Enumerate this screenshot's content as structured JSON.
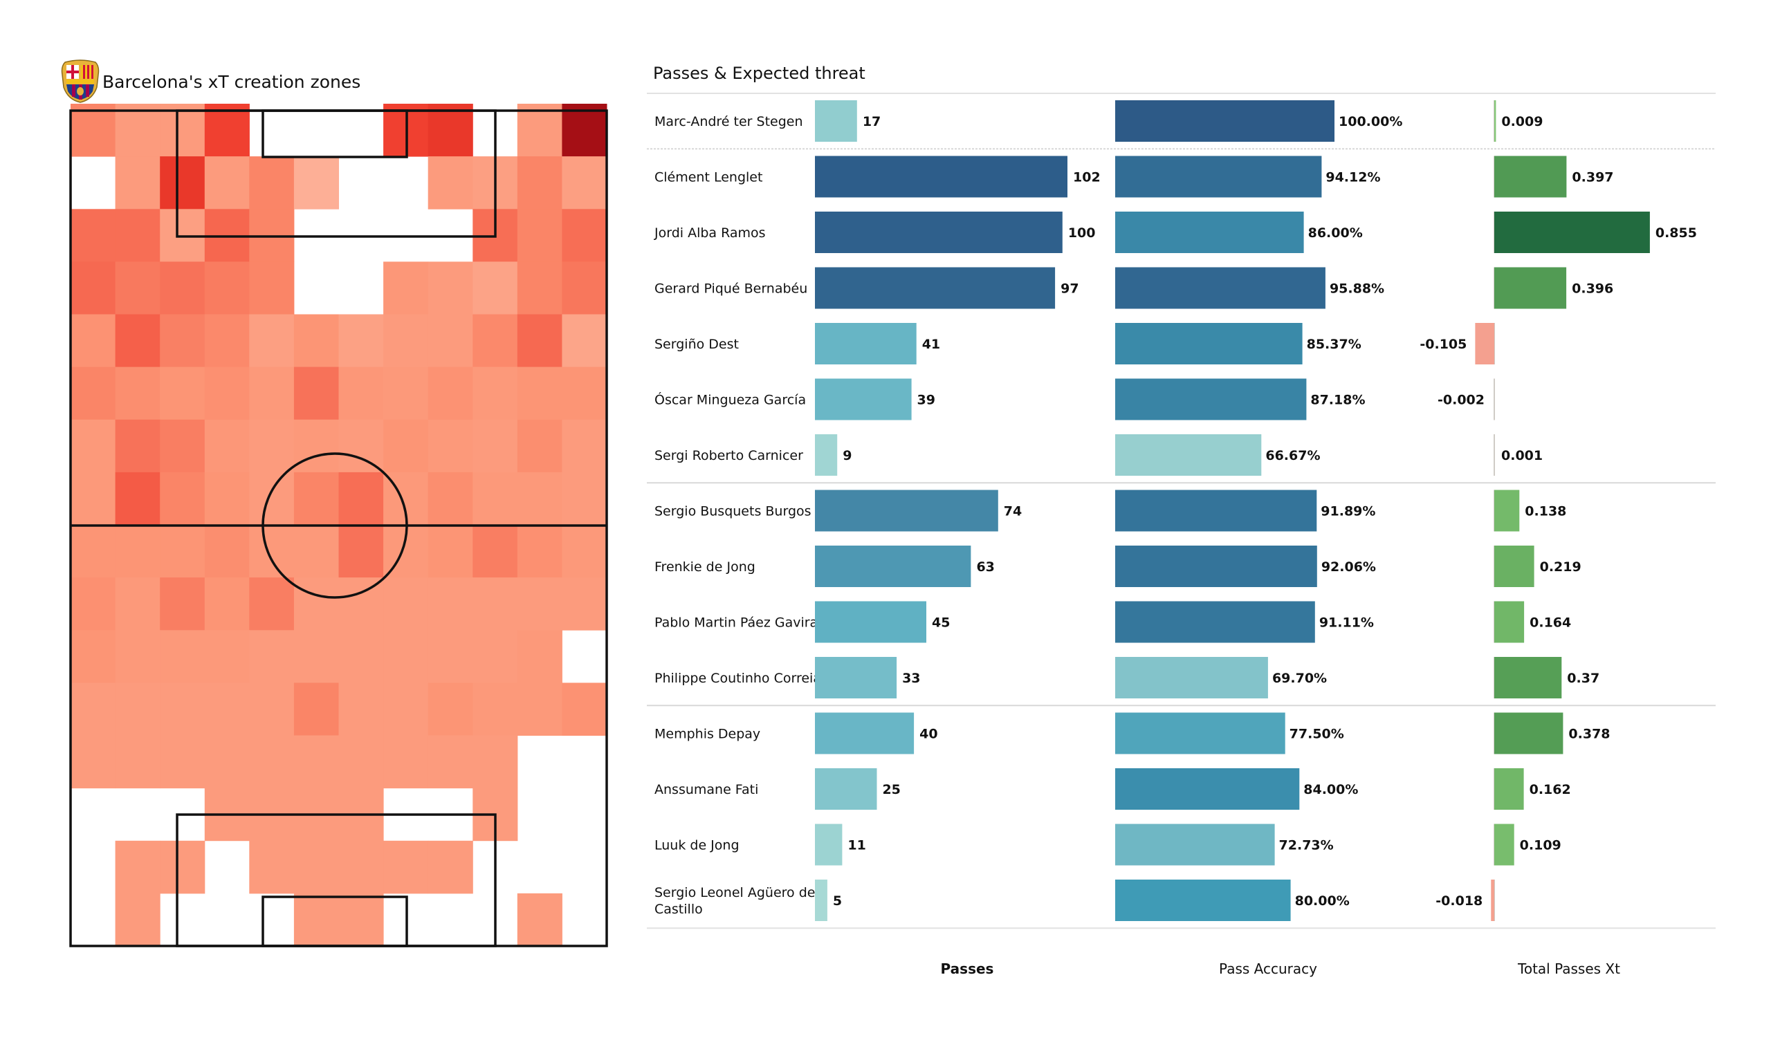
{
  "left_panel": {
    "title": "Barcelona's xT creation zones",
    "crest_icon": "fc-barcelona-crest-icon"
  },
  "right_panel": {
    "title": "Passes & Expected threat",
    "column_headers": [
      "Passes",
      "Pass Accuracy",
      "Total Passes Xt"
    ]
  },
  "chart_data": [
    {
      "type": "heatmap",
      "title": "Barcelona's xT creation zones",
      "description": "12 x 16 grid on a vertical pitch (attacking towards top). Intensity 0 = no data (white), higher = more xT created.",
      "columns": 12,
      "rows": 16,
      "color_scale": [
        "#fee0d2",
        "#fc9272",
        "#ef3b2c",
        "#a50f15"
      ],
      "max_value": 10,
      "values": [
        [
          3,
          2,
          2,
          6,
          0,
          0,
          0,
          6,
          6.5,
          0,
          2,
          10
        ],
        [
          0,
          2,
          6.5,
          2,
          3,
          1,
          0,
          0,
          2,
          1.8,
          3,
          1.8
        ],
        [
          4,
          4,
          1.8,
          4.3,
          3,
          0,
          0,
          0,
          0,
          4,
          3,
          4
        ],
        [
          4.2,
          3.5,
          3.8,
          3.4,
          3,
          0,
          0,
          2.2,
          2,
          1.6,
          3,
          3.6
        ],
        [
          2.4,
          4.6,
          3.2,
          2.8,
          1.8,
          2.3,
          1.7,
          2,
          2,
          2.8,
          4.2,
          1.5
        ],
        [
          3,
          2.6,
          2.3,
          2.5,
          2.1,
          3.8,
          2.2,
          2.1,
          2.4,
          2.1,
          2.3,
          2.3
        ],
        [
          2.1,
          3.8,
          3.3,
          2.2,
          2,
          2.1,
          2,
          2.3,
          2.1,
          2,
          2.6,
          2
        ],
        [
          2.1,
          4.8,
          3,
          2.3,
          2,
          3,
          4,
          2.1,
          2.6,
          2.1,
          2.1,
          2
        ],
        [
          2.3,
          2.3,
          2.3,
          2.6,
          2.1,
          2.1,
          3.8,
          2.1,
          2.3,
          3.3,
          2.5,
          2.1
        ],
        [
          2.5,
          2.1,
          3.3,
          2.3,
          3.3,
          2,
          2,
          2,
          2,
          2,
          2,
          2
        ],
        [
          2.3,
          2.1,
          2.1,
          2.1,
          2,
          2,
          2,
          2,
          2,
          2,
          2.1,
          0
        ],
        [
          2,
          2,
          2,
          2,
          2,
          3,
          2,
          2,
          2.3,
          2.1,
          2.1,
          2.4
        ],
        [
          2,
          2,
          2,
          2,
          2,
          2,
          2,
          2,
          2,
          2,
          0,
          0
        ],
        [
          0,
          0,
          0,
          2,
          2,
          2,
          2,
          0,
          0,
          2,
          0,
          0
        ],
        [
          0,
          2,
          2,
          0,
          2,
          2,
          2,
          2,
          2,
          0,
          0,
          0
        ],
        [
          0,
          2,
          0,
          0,
          0,
          2,
          2,
          0,
          0,
          0,
          2,
          0
        ]
      ]
    },
    {
      "type": "bar",
      "title": "Passes & Expected threat",
      "orientation": "horizontal",
      "groups": [
        {
          "players": [
            0
          ]
        },
        {
          "players": [
            1,
            2,
            3,
            4,
            5,
            6
          ]
        },
        {
          "players": [
            7,
            8,
            9,
            10
          ]
        },
        {
          "players": [
            11,
            12,
            13,
            14
          ]
        }
      ],
      "players": [
        {
          "name": "Marc-André ter Stegen",
          "passes": 17,
          "accuracy": 100.0,
          "accuracy_label": "100.00%",
          "xt": 0.009,
          "xt_label": "0.009"
        },
        {
          "name": "Clément Lenglet",
          "passes": 102,
          "accuracy": 94.12,
          "accuracy_label": "94.12%",
          "xt": 0.397,
          "xt_label": "0.397"
        },
        {
          "name": "Jordi Alba Ramos",
          "passes": 100,
          "accuracy": 86.0,
          "accuracy_label": "86.00%",
          "xt": 0.855,
          "xt_label": "0.855"
        },
        {
          "name": "Gerard Piqué Bernabéu",
          "passes": 97,
          "accuracy": 95.88,
          "accuracy_label": "95.88%",
          "xt": 0.396,
          "xt_label": "0.396"
        },
        {
          "name": "Sergiño Dest",
          "passes": 41,
          "accuracy": 85.37,
          "accuracy_label": "85.37%",
          "xt": -0.105,
          "xt_label": "-0.105"
        },
        {
          "name": "Óscar Mingueza García",
          "passes": 39,
          "accuracy": 87.18,
          "accuracy_label": "87.18%",
          "xt": -0.002,
          "xt_label": "-0.002"
        },
        {
          "name": "Sergi Roberto Carnicer",
          "passes": 9,
          "accuracy": 66.67,
          "accuracy_label": "66.67%",
          "xt": 0.001,
          "xt_label": "0.001"
        },
        {
          "name": "Sergio Busquets Burgos",
          "passes": 74,
          "accuracy": 91.89,
          "accuracy_label": "91.89%",
          "xt": 0.138,
          "xt_label": "0.138"
        },
        {
          "name": "Frenkie de Jong",
          "passes": 63,
          "accuracy": 92.06,
          "accuracy_label": "92.06%",
          "xt": 0.219,
          "xt_label": "0.219"
        },
        {
          "name": "Pablo Martin Páez Gavira",
          "passes": 45,
          "accuracy": 91.11,
          "accuracy_label": "91.11%",
          "xt": 0.164,
          "xt_label": "0.164"
        },
        {
          "name": "Philippe Coutinho Correia",
          "passes": 33,
          "accuracy": 69.7,
          "accuracy_label": "69.70%",
          "xt": 0.37,
          "xt_label": "0.37"
        },
        {
          "name": "Memphis Depay",
          "passes": 40,
          "accuracy": 77.5,
          "accuracy_label": "77.50%",
          "xt": 0.378,
          "xt_label": "0.378"
        },
        {
          "name": "Anssumane Fati",
          "passes": 25,
          "accuracy": 84.0,
          "accuracy_label": "84.00%",
          "xt": 0.162,
          "xt_label": "0.162"
        },
        {
          "name": "Luuk de Jong",
          "passes": 11,
          "accuracy": 72.73,
          "accuracy_label": "72.73%",
          "xt": 0.109,
          "xt_label": "0.109"
        },
        {
          "name": "Sergio Leonel Agüero del Castillo",
          "passes": 5,
          "accuracy": 80.0,
          "accuracy_label": "80.00%",
          "xt": -0.018,
          "xt_label": "-0.018"
        }
      ],
      "passes_max": 102,
      "accuracy_range": [
        60,
        100
      ],
      "xt_range": [
        -0.105,
        0.855
      ],
      "colors": {
        "passes_scale": [
          "#b9e3d9",
          "#5aaec2",
          "#2d5d8a"
        ],
        "accuracy_scale": [
          "#c3e9dc",
          "#3f9bb6",
          "#2d5a87"
        ],
        "xt_positive_scale": [
          "#8fd07f",
          "#5fa85a",
          "#226b3f"
        ],
        "xt_negative": "#f4a08f",
        "xt_zero_line": "#d0ccc6"
      }
    }
  ]
}
